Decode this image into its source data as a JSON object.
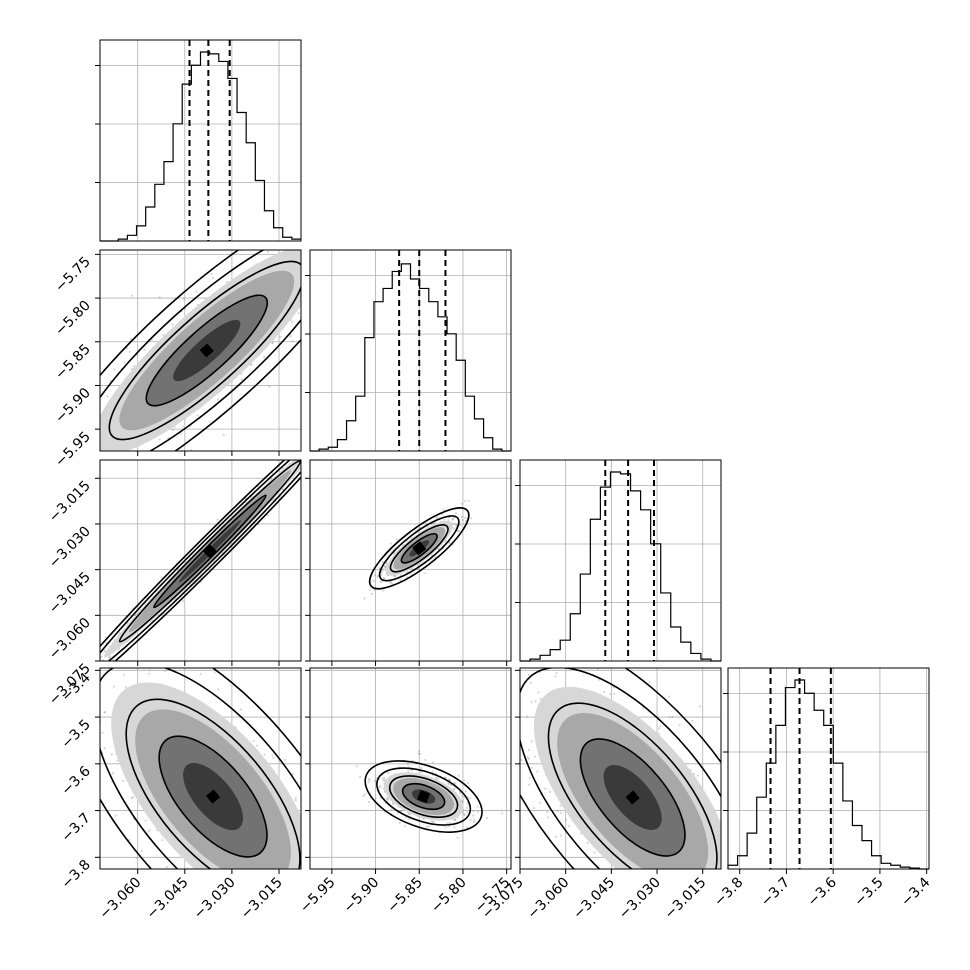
{
  "chart_data": {
    "type": "corner",
    "grid": true,
    "parameters": [
      {
        "index": 0,
        "range": [
          -3.072,
          -3.008
        ],
        "ticks": [
          -3.06,
          -3.045,
          -3.03,
          -3.015
        ],
        "tick_labels": [
          "−3.060",
          "−3.045",
          "−3.030",
          "−3.015"
        ],
        "quantiles": [
          -3.0435,
          -3.0375,
          -3.0307
        ]
      },
      {
        "index": 1,
        "range": [
          -5.975,
          -5.745
        ],
        "ticks": [
          -5.95,
          -5.9,
          -5.85,
          -5.8,
          -5.75
        ],
        "tick_labels": [
          "−5.95",
          "−5.90",
          "−5.85",
          "−5.80",
          "−5.75"
        ],
        "quantiles": [
          -5.873,
          -5.85,
          -5.82
        ]
      },
      {
        "index": 2,
        "range": [
          -3.075,
          -3.009
        ],
        "ticks": [
          -3.075,
          -3.06,
          -3.045,
          -3.03,
          -3.015
        ],
        "tick_labels": [
          "−3.075",
          "−3.060",
          "−3.045",
          "−3.030",
          "−3.015"
        ],
        "quantiles": [
          -3.047,
          -3.0395,
          -3.031
        ]
      },
      {
        "index": 3,
        "range": [
          -3.825,
          -3.395
        ],
        "ticks": [
          -3.8,
          -3.7,
          -3.6,
          -3.5,
          -3.4
        ],
        "tick_labels": [
          "−3.8",
          "−3.7",
          "−3.6",
          "−3.5",
          "−3.4"
        ],
        "quantiles": [
          -3.734,
          -3.672,
          -3.605
        ]
      }
    ],
    "histograms": [
      [
        0,
        0,
        0.01,
        0.03,
        0.08,
        0.18,
        0.3,
        0.42,
        0.62,
        0.83,
        0.93,
        1.0,
        0.99,
        0.95,
        0.86,
        0.68,
        0.52,
        0.32,
        0.16,
        0.07,
        0.02,
        0.01
      ],
      [
        0,
        0.01,
        0.02,
        0.06,
        0.16,
        0.29,
        0.6,
        0.79,
        0.86,
        0.95,
        0.99,
        0.91,
        0.86,
        0.79,
        0.71,
        0.62,
        0.48,
        0.29,
        0.17,
        0.07,
        0.01,
        0
      ],
      [
        0,
        0.01,
        0.03,
        0.06,
        0.11,
        0.25,
        0.46,
        0.75,
        0.92,
        1.0,
        0.99,
        0.9,
        0.8,
        0.62,
        0.36,
        0.18,
        0.1,
        0.04,
        0.01,
        0
      ],
      [
        0.02,
        0.07,
        0.19,
        0.38,
        0.56,
        0.76,
        0.96,
        1.0,
        0.93,
        0.84,
        0.76,
        0.56,
        0.36,
        0.23,
        0.15,
        0.07,
        0.03,
        0.02,
        0.01,
        0.005,
        0
      ]
    ],
    "pairs": [
      {
        "x": 0,
        "y": 1,
        "center": [
          -3.038,
          -5.86
        ],
        "major": 0.028,
        "minor": 0.0075,
        "angle_deg": 42
      },
      {
        "x": 0,
        "y": 2,
        "center": [
          -3.037,
          -3.039
        ],
        "major": 0.028,
        "minor": 0.0018,
        "angle_deg": 45
      },
      {
        "x": 1,
        "y": 2,
        "center": [
          -5.85,
          -3.038
        ],
        "major": 0.028,
        "minor": 0.0085,
        "angle_deg": 38
      },
      {
        "x": 0,
        "y": 3,
        "center": [
          -3.036,
          -3.67
        ],
        "major": 0.026,
        "minor": 0.012,
        "angle_deg": -50
      },
      {
        "x": 1,
        "y": 3,
        "center": [
          -5.845,
          -3.67
        ],
        "major": 0.028,
        "minor": 0.014,
        "angle_deg": -20
      },
      {
        "x": 2,
        "y": 3,
        "center": [
          -3.038,
          -3.672
        ],
        "major": 0.026,
        "minor": 0.012,
        "angle_deg": -50
      }
    ]
  }
}
